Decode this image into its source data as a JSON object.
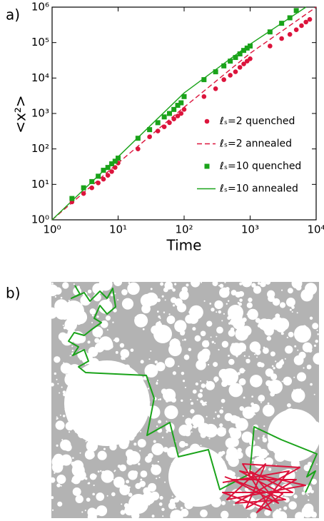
{
  "panels": [
    "a)",
    "b)"
  ],
  "chart_data": {
    "type": "scatter-line",
    "x_label": "Time",
    "y_label": "<x²>",
    "log_x": true,
    "log_y": true,
    "xlim": [
      1,
      10000
    ],
    "ylim": [
      1,
      1000000
    ],
    "xticks": [
      {
        "value": 1,
        "label": "10⁰"
      },
      {
        "value": 10,
        "label": "10¹"
      },
      {
        "value": 100,
        "label": "10²"
      },
      {
        "value": 1000,
        "label": "10³"
      },
      {
        "value": 10000,
        "label": "10⁴"
      }
    ],
    "yticks": [
      {
        "value": 1,
        "label": "10⁰"
      },
      {
        "value": 10,
        "label": "10¹"
      },
      {
        "value": 100,
        "label": "10²"
      },
      {
        "value": 1000,
        "label": "10³"
      },
      {
        "value": 10000,
        "label": "10⁴"
      },
      {
        "value": 100000,
        "label": "10⁵"
      },
      {
        "value": 1000000,
        "label": "10⁶"
      }
    ],
    "legend": "right",
    "series": [
      {
        "name": "ℓₛ=2 quenched",
        "color": "#dc143c",
        "style": "circle",
        "x": [
          2,
          3,
          4,
          5,
          6,
          7,
          8,
          9,
          10,
          20,
          30,
          40,
          50,
          60,
          70,
          80,
          90,
          100,
          200,
          300,
          400,
          500,
          600,
          700,
          800,
          900,
          1000,
          2000,
          3000,
          4000,
          5000,
          6000,
          7000,
          8000
        ],
        "values": [
          3.2,
          5.5,
          8,
          11,
          14,
          18,
          23,
          30,
          40,
          100,
          220,
          320,
          420,
          550,
          700,
          850,
          1000,
          1300,
          3000,
          5000,
          9000,
          12000,
          15000,
          20000,
          25000,
          30000,
          35000,
          80000,
          130000,
          170000,
          230000,
          300000,
          380000,
          450000
        ]
      },
      {
        "name": "ℓₛ=2 annealed",
        "color": "#dc143c",
        "style": "dashed",
        "x": [
          1,
          10,
          100,
          1000,
          10000
        ],
        "values": [
          1,
          40,
          1500,
          50000,
          1000000
        ]
      },
      {
        "name": "ℓₛ=10 quenched",
        "color": "#1aa31a",
        "style": "square",
        "x": [
          2,
          3,
          4,
          5,
          6,
          7,
          8,
          9,
          10,
          20,
          30,
          40,
          50,
          60,
          70,
          80,
          90,
          100,
          200,
          300,
          400,
          500,
          600,
          700,
          800,
          900,
          1000,
          2000,
          3000,
          4000,
          5000
        ],
        "values": [
          4,
          8,
          12,
          17,
          25,
          30,
          38,
          45,
          55,
          200,
          350,
          550,
          800,
          1000,
          1300,
          1700,
          2000,
          3000,
          9000,
          15000,
          22000,
          30000,
          38000,
          48000,
          60000,
          70000,
          80000,
          200000,
          350000,
          500000,
          800000
        ]
      },
      {
        "name": "ℓₛ=10 annealed",
        "color": "#1aa31a",
        "style": "solid",
        "x": [
          1,
          10,
          100,
          1000,
          7000
        ],
        "values": [
          1,
          60,
          3800,
          90000,
          1000000
        ]
      }
    ]
  }
}
